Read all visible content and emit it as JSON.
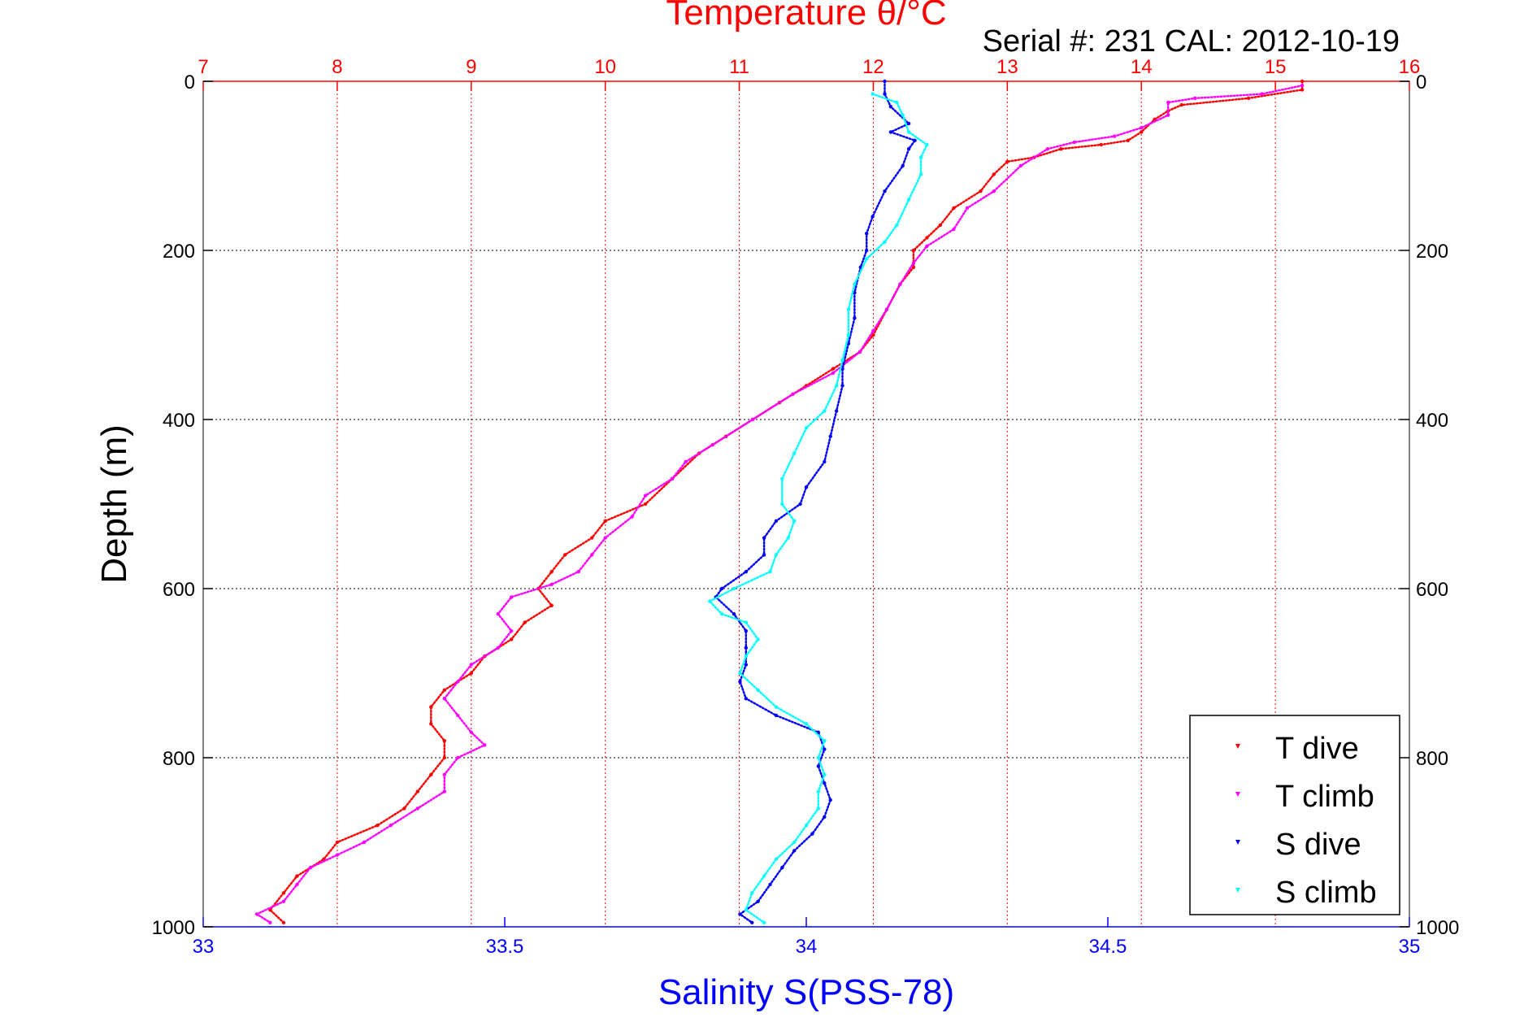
{
  "chart_data": {
    "type": "scatter",
    "title": "Temperature θ/°C",
    "subtitle": "Serial #: 231  CAL: 2012-10-19",
    "ylabel": "Depth (m)",
    "xlabel": "Salinity S(PSS-78)",
    "ylim": [
      0,
      1000
    ],
    "y_reversed": true,
    "x_top": {
      "label": "Temperature θ/°C",
      "range": [
        7,
        16
      ],
      "ticks": [
        "7",
        "8",
        "9",
        "10",
        "11",
        "12",
        "13",
        "14",
        "15",
        "16"
      ],
      "color": "#ff0000"
    },
    "x_bottom": {
      "label": "Salinity S(PSS-78)",
      "range": [
        33,
        35
      ],
      "ticks": [
        "33",
        "33.5",
        "34",
        "34.5",
        "35"
      ],
      "color": "#0000ff"
    },
    "y_ticks": [
      "0",
      "200",
      "400",
      "600",
      "800",
      "1000"
    ],
    "grid": true,
    "legend_position": "bottom-right",
    "series": [
      {
        "name": "T dive",
        "axis": "top",
        "color": "#ff0000",
        "points": [
          [
            15.2,
            0
          ],
          [
            15.2,
            10
          ],
          [
            14.8,
            20
          ],
          [
            14.3,
            28
          ],
          [
            14.2,
            35
          ],
          [
            14.1,
            45
          ],
          [
            14.0,
            60
          ],
          [
            13.9,
            70
          ],
          [
            13.7,
            75
          ],
          [
            13.4,
            80
          ],
          [
            13.2,
            90
          ],
          [
            13.0,
            95
          ],
          [
            12.9,
            110
          ],
          [
            12.8,
            130
          ],
          [
            12.6,
            150
          ],
          [
            12.5,
            170
          ],
          [
            12.4,
            185
          ],
          [
            12.3,
            200
          ],
          [
            12.3,
            220
          ],
          [
            12.2,
            240
          ],
          [
            12.1,
            270
          ],
          [
            12.0,
            300
          ],
          [
            11.9,
            320
          ],
          [
            11.7,
            340
          ],
          [
            11.5,
            360
          ],
          [
            11.3,
            380
          ],
          [
            11.1,
            400
          ],
          [
            10.9,
            420
          ],
          [
            10.7,
            440
          ],
          [
            10.5,
            470
          ],
          [
            10.3,
            500
          ],
          [
            10.0,
            520
          ],
          [
            9.9,
            540
          ],
          [
            9.7,
            560
          ],
          [
            9.6,
            580
          ],
          [
            9.5,
            600
          ],
          [
            9.6,
            620
          ],
          [
            9.4,
            640
          ],
          [
            9.3,
            660
          ],
          [
            9.1,
            680
          ],
          [
            9.0,
            700
          ],
          [
            8.8,
            720
          ],
          [
            8.7,
            740
          ],
          [
            8.7,
            760
          ],
          [
            8.8,
            780
          ],
          [
            8.8,
            800
          ],
          [
            8.7,
            820
          ],
          [
            8.6,
            840
          ],
          [
            8.5,
            860
          ],
          [
            8.3,
            880
          ],
          [
            8.0,
            900
          ],
          [
            7.9,
            920
          ],
          [
            7.7,
            940
          ],
          [
            7.6,
            960
          ],
          [
            7.5,
            980
          ],
          [
            7.6,
            995
          ]
        ]
      },
      {
        "name": "T climb",
        "axis": "top",
        "color": "#ff00ff",
        "points": [
          [
            15.2,
            5
          ],
          [
            14.9,
            15
          ],
          [
            14.4,
            20
          ],
          [
            14.2,
            25
          ],
          [
            14.2,
            40
          ],
          [
            14.0,
            55
          ],
          [
            13.8,
            65
          ],
          [
            13.5,
            72
          ],
          [
            13.3,
            80
          ],
          [
            13.1,
            100
          ],
          [
            12.9,
            130
          ],
          [
            12.7,
            150
          ],
          [
            12.6,
            175
          ],
          [
            12.4,
            195
          ],
          [
            12.3,
            215
          ],
          [
            12.2,
            240
          ],
          [
            12.1,
            270
          ],
          [
            12.0,
            295
          ],
          [
            11.9,
            320
          ],
          [
            11.7,
            345
          ],
          [
            11.4,
            370
          ],
          [
            11.1,
            400
          ],
          [
            10.8,
            430
          ],
          [
            10.6,
            450
          ],
          [
            10.5,
            470
          ],
          [
            10.3,
            490
          ],
          [
            10.2,
            515
          ],
          [
            10.0,
            540
          ],
          [
            9.9,
            560
          ],
          [
            9.8,
            580
          ],
          [
            9.6,
            595
          ],
          [
            9.3,
            610
          ],
          [
            9.2,
            630
          ],
          [
            9.3,
            650
          ],
          [
            9.2,
            670
          ],
          [
            9.0,
            690
          ],
          [
            8.9,
            710
          ],
          [
            8.8,
            730
          ],
          [
            8.9,
            750
          ],
          [
            9.0,
            770
          ],
          [
            9.1,
            785
          ],
          [
            8.9,
            800
          ],
          [
            8.8,
            820
          ],
          [
            8.8,
            840
          ],
          [
            8.6,
            860
          ],
          [
            8.4,
            880
          ],
          [
            8.2,
            900
          ],
          [
            8.0,
            915
          ],
          [
            7.8,
            930
          ],
          [
            7.7,
            950
          ],
          [
            7.6,
            970
          ],
          [
            7.4,
            985
          ],
          [
            7.5,
            995
          ]
        ]
      },
      {
        "name": "S dive",
        "axis": "bottom",
        "color": "#0000ff",
        "points": [
          [
            34.13,
            0
          ],
          [
            34.13,
            15
          ],
          [
            34.14,
            30
          ],
          [
            34.17,
            50
          ],
          [
            34.14,
            60
          ],
          [
            34.18,
            70
          ],
          [
            34.17,
            80
          ],
          [
            34.16,
            100
          ],
          [
            34.13,
            130
          ],
          [
            34.11,
            160
          ],
          [
            34.1,
            180
          ],
          [
            34.1,
            200
          ],
          [
            34.09,
            220
          ],
          [
            34.08,
            250
          ],
          [
            34.08,
            280
          ],
          [
            34.07,
            310
          ],
          [
            34.06,
            340
          ],
          [
            34.06,
            360
          ],
          [
            34.05,
            390
          ],
          [
            34.04,
            420
          ],
          [
            34.03,
            450
          ],
          [
            34.0,
            480
          ],
          [
            33.99,
            500
          ],
          [
            33.95,
            520
          ],
          [
            33.93,
            540
          ],
          [
            33.93,
            560
          ],
          [
            33.9,
            580
          ],
          [
            33.86,
            600
          ],
          [
            33.85,
            610
          ],
          [
            33.88,
            630
          ],
          [
            33.9,
            650
          ],
          [
            33.9,
            670
          ],
          [
            33.9,
            690
          ],
          [
            33.89,
            710
          ],
          [
            33.9,
            730
          ],
          [
            33.95,
            750
          ],
          [
            34.02,
            770
          ],
          [
            34.03,
            790
          ],
          [
            34.02,
            810
          ],
          [
            34.03,
            830
          ],
          [
            34.04,
            850
          ],
          [
            34.03,
            870
          ],
          [
            34.01,
            890
          ],
          [
            33.98,
            910
          ],
          [
            33.96,
            930
          ],
          [
            33.94,
            950
          ],
          [
            33.92,
            970
          ],
          [
            33.89,
            985
          ],
          [
            33.91,
            995
          ]
        ]
      },
      {
        "name": "S climb",
        "axis": "bottom",
        "color": "#00ffff",
        "points": [
          [
            34.11,
            15
          ],
          [
            34.15,
            25
          ],
          [
            34.16,
            40
          ],
          [
            34.17,
            60
          ],
          [
            34.2,
            75
          ],
          [
            34.19,
            90
          ],
          [
            34.19,
            110
          ],
          [
            34.17,
            140
          ],
          [
            34.15,
            170
          ],
          [
            34.13,
            190
          ],
          [
            34.1,
            210
          ],
          [
            34.08,
            240
          ],
          [
            34.07,
            270
          ],
          [
            34.07,
            300
          ],
          [
            34.06,
            330
          ],
          [
            34.05,
            360
          ],
          [
            34.03,
            390
          ],
          [
            34.0,
            410
          ],
          [
            33.98,
            440
          ],
          [
            33.96,
            470
          ],
          [
            33.96,
            500
          ],
          [
            33.98,
            520
          ],
          [
            33.97,
            540
          ],
          [
            33.95,
            560
          ],
          [
            33.94,
            580
          ],
          [
            33.88,
            600
          ],
          [
            33.84,
            615
          ],
          [
            33.86,
            630
          ],
          [
            33.9,
            640
          ],
          [
            33.92,
            660
          ],
          [
            33.9,
            680
          ],
          [
            33.89,
            700
          ],
          [
            33.92,
            720
          ],
          [
            33.95,
            740
          ],
          [
            34.0,
            760
          ],
          [
            34.03,
            780
          ],
          [
            34.02,
            800
          ],
          [
            34.03,
            820
          ],
          [
            34.02,
            840
          ],
          [
            34.02,
            860
          ],
          [
            34.0,
            880
          ],
          [
            33.98,
            900
          ],
          [
            33.95,
            920
          ],
          [
            33.93,
            940
          ],
          [
            33.91,
            960
          ],
          [
            33.9,
            980
          ],
          [
            33.93,
            995
          ]
        ]
      }
    ]
  }
}
